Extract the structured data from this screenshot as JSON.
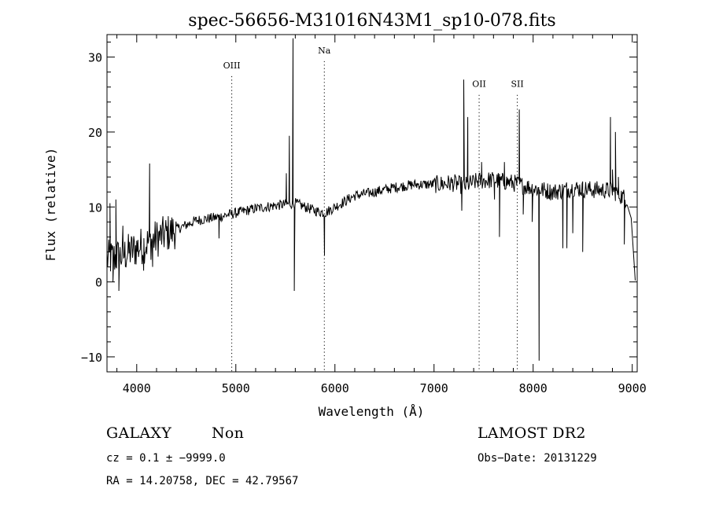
{
  "chart_data": {
    "type": "line",
    "title": "spec-56656-M31016N43M1_sp10-078.fits",
    "xlabel": "Wavelength (Å)",
    "ylabel": "Flux (relative)",
    "xlim": [
      3700,
      9050
    ],
    "ylim": [
      -12,
      33
    ],
    "x_ticks": [
      4000,
      5000,
      6000,
      7000,
      8000,
      9000
    ],
    "y_ticks": [
      -10,
      0,
      10,
      20,
      30
    ],
    "x_tick_labels": [
      "4000",
      "5000",
      "6000",
      "7000",
      "8000",
      "9000"
    ],
    "y_tick_labels": [
      "−10",
      "0",
      "10",
      "20",
      "30"
    ],
    "grid": false,
    "series": [
      {
        "color": "#000000",
        "continuum": [
          [
            3700,
            3.0
          ],
          [
            3850,
            3.5
          ],
          [
            4000,
            4.5
          ],
          [
            4200,
            5.8
          ],
          [
            4400,
            7.0
          ],
          [
            4600,
            8.2
          ],
          [
            4800,
            8.6
          ],
          [
            5000,
            9.2
          ],
          [
            5200,
            9.8
          ],
          [
            5400,
            10.2
          ],
          [
            5600,
            10.5
          ],
          [
            5800,
            9.5
          ],
          [
            5900,
            9.2
          ],
          [
            6000,
            10.0
          ],
          [
            6200,
            11.5
          ],
          [
            6400,
            12.0
          ],
          [
            6600,
            12.6
          ],
          [
            6800,
            13.0
          ],
          [
            7000,
            13.0
          ],
          [
            7200,
            13.2
          ],
          [
            7300,
            12.8
          ],
          [
            7450,
            13.5
          ],
          [
            7600,
            13.6
          ],
          [
            7800,
            13.2
          ],
          [
            8000,
            12.5
          ],
          [
            8200,
            12.0
          ],
          [
            8400,
            12.5
          ],
          [
            8600,
            12.3
          ],
          [
            8800,
            12.2
          ],
          [
            8950,
            11.0
          ]
        ],
        "spikes": [
          [
            3730,
            10.5
          ],
          [
            3760,
            0
          ],
          [
            3790,
            11.0
          ],
          [
            3820,
            -1.2
          ],
          [
            3860,
            7.5
          ],
          [
            4070,
            1.5
          ],
          [
            4130,
            15.8
          ],
          [
            4160,
            2.0
          ],
          [
            4830,
            5.8
          ],
          [
            5510,
            14.5
          ],
          [
            5540,
            19.5
          ],
          [
            5577,
            32.5
          ],
          [
            5590,
            -1.2
          ],
          [
            5895,
            3.5
          ],
          [
            7280,
            9.5
          ],
          [
            7300,
            27.0
          ],
          [
            7340,
            22.0
          ],
          [
            7480,
            16.0
          ],
          [
            7610,
            11.0
          ],
          [
            7660,
            6.0
          ],
          [
            7710,
            16.0
          ],
          [
            7860,
            23.0
          ],
          [
            7900,
            9.0
          ],
          [
            7990,
            8.0
          ],
          [
            8060,
            -10.5
          ],
          [
            8300,
            4.5
          ],
          [
            8340,
            4.5
          ],
          [
            8400,
            6.5
          ],
          [
            8500,
            4.0
          ],
          [
            8780,
            22.0
          ],
          [
            8800,
            15.0
          ],
          [
            8830,
            20.0
          ],
          [
            8860,
            14.0
          ],
          [
            8920,
            5.0
          ],
          [
            8990,
            8.5
          ],
          [
            9030,
            0.2
          ]
        ]
      }
    ],
    "annotations": [
      {
        "label": "OIII",
        "x": 4959,
        "y": 28.5
      },
      {
        "label": "Na",
        "x": 5893,
        "y": 30.5
      },
      {
        "label": "OII",
        "x": 7455,
        "y": 26.0
      },
      {
        "label": "SII",
        "x": 7840,
        "y": 26.0
      }
    ]
  },
  "info": {
    "class_label": "GALAXY",
    "subclass": "Non",
    "survey": "LAMOST DR2",
    "cz": "cz = 0.1 ± −9999.0",
    "obs_date": "Obs−Date: 20131229",
    "coords": "RA =  14.20758, DEC =  42.79567"
  }
}
